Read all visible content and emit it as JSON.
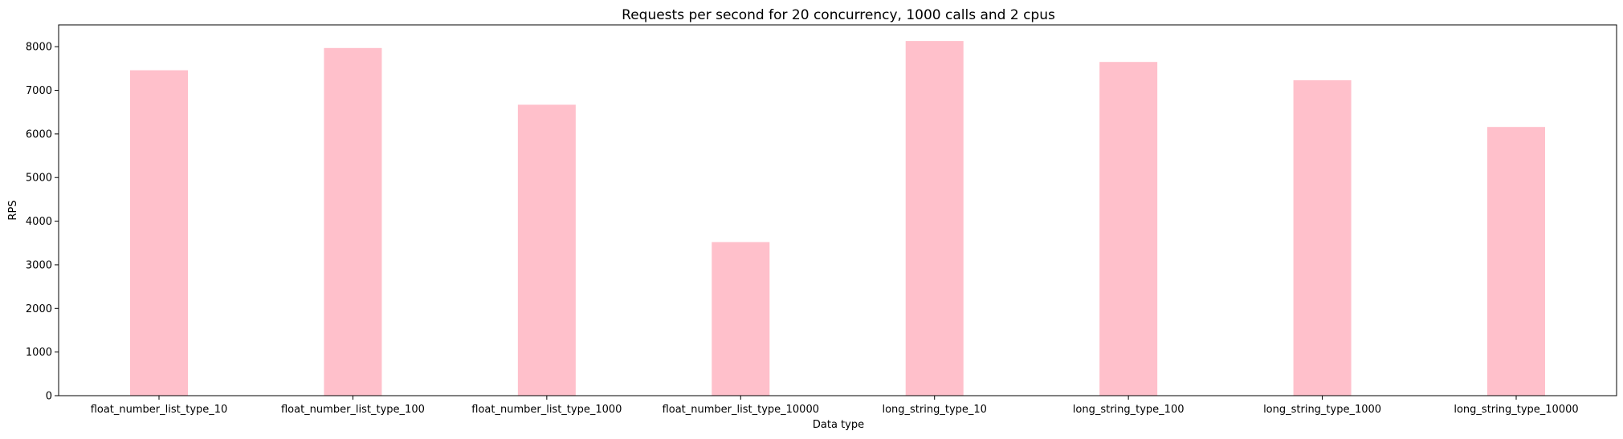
{
  "chart_data": {
    "type": "bar",
    "title": "Requests per second for 20 concurrency, 1000 calls and 2 cpus",
    "xlabel": "Data type",
    "ylabel": "RPS",
    "categories": [
      "float_number_list_type_10",
      "float_number_list_type_100",
      "float_number_list_type_1000",
      "float_number_list_type_10000",
      "long_string_type_10",
      "long_string_type_100",
      "long_string_type_1000",
      "long_string_type_10000"
    ],
    "values": [
      7460,
      7970,
      6670,
      3520,
      8130,
      7650,
      7230,
      6160
    ],
    "ylim": [
      0,
      8500
    ],
    "yticks": [
      0,
      1000,
      2000,
      3000,
      4000,
      5000,
      6000,
      7000,
      8000
    ],
    "bar_color": "#ffc0cb",
    "grid": false,
    "legend": "none"
  }
}
